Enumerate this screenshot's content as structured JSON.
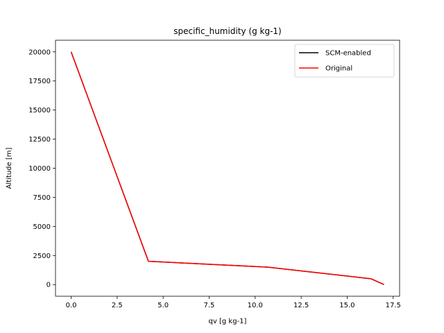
{
  "chart_data": {
    "type": "line",
    "title": "specific_humidity (g kg-1)",
    "xlabel": "qv [g kg-1]",
    "ylabel": "Altitude [m]",
    "xlim": [
      -0.85,
      17.85
    ],
    "ylim": [
      -1000,
      21000
    ],
    "xticks": [
      0.0,
      2.5,
      5.0,
      7.5,
      10.0,
      12.5,
      15.0,
      17.5
    ],
    "xtick_labels": [
      "0.0",
      "2.5",
      "5.0",
      "7.5",
      "10.0",
      "12.5",
      "15.0",
      "17.5"
    ],
    "yticks": [
      0,
      2500,
      5000,
      7500,
      10000,
      12500,
      15000,
      17500,
      20000
    ],
    "ytick_labels": [
      "0",
      "2500",
      "5000",
      "7500",
      "10000",
      "12500",
      "15000",
      "17500",
      "20000"
    ],
    "grid": false,
    "legend_position": "top-right",
    "series": [
      {
        "name": "SCM-enabled",
        "color": "#000000",
        "x": [
          17.0,
          16.3,
          10.7,
          4.2,
          0.0
        ],
        "y": [
          0,
          500,
          1500,
          2000,
          20000
        ]
      },
      {
        "name": "Original",
        "color": "#ff0000",
        "x": [
          17.0,
          16.3,
          10.7,
          4.2,
          0.0
        ],
        "y": [
          0,
          500,
          1500,
          2000,
          20000
        ]
      }
    ]
  }
}
